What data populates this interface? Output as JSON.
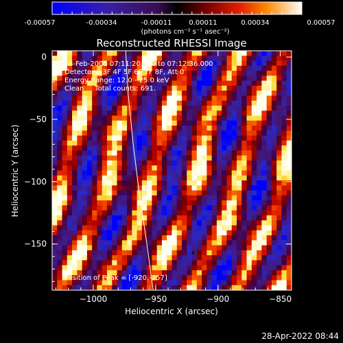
{
  "colorbar": {
    "tick_labels": [
      "-0.00057",
      "-0.00034",
      "-0.00011",
      "0.00011",
      "0.00034",
      "0.00057"
    ],
    "unit_label": "(photons cm⁻² s⁻¹ asec⁻²)",
    "range": [
      -0.00057,
      0.00057
    ]
  },
  "chart_data": {
    "type": "heatmap",
    "title": "Reconstructed RHESSI Image",
    "xlabel": "Heliocentric X (arcsec)",
    "ylabel": "Heliocentric Y (arcsec)",
    "xlim": [
      -1033,
      -841
    ],
    "ylim": [
      -187,
      5
    ],
    "x_ticks": [
      -1000,
      -950,
      -900,
      -850
    ],
    "x_tick_labels": [
      "−1000",
      "−950",
      "−900",
      "−850"
    ],
    "y_ticks": [
      0,
      -50,
      -100,
      -150
    ],
    "y_tick_labels": [
      "0",
      "−50",
      "−100",
      "−150"
    ],
    "limb_curve": [
      [
        -974,
        5
      ],
      [
        -972,
        -30
      ],
      [
        -968,
        -70
      ],
      [
        -963,
        -110
      ],
      [
        -957,
        -150
      ],
      [
        -952,
        -187
      ]
    ],
    "peak": {
      "x": -920,
      "y": -157
    },
    "info_lines": [
      "8-Feb-2005 07:11:20.000 to 07:12:36.000",
      "Detectors: 3F 4F 5F 6F 7F 8F, Att 0",
      "Energy Range: 12.0 - 25.0 keV",
      "Clean     Total counts: 691."
    ],
    "peak_label": "Position of Peak = [-920,-157]"
  },
  "footer": {
    "timestamp": "28-Apr-2022 08:44"
  }
}
